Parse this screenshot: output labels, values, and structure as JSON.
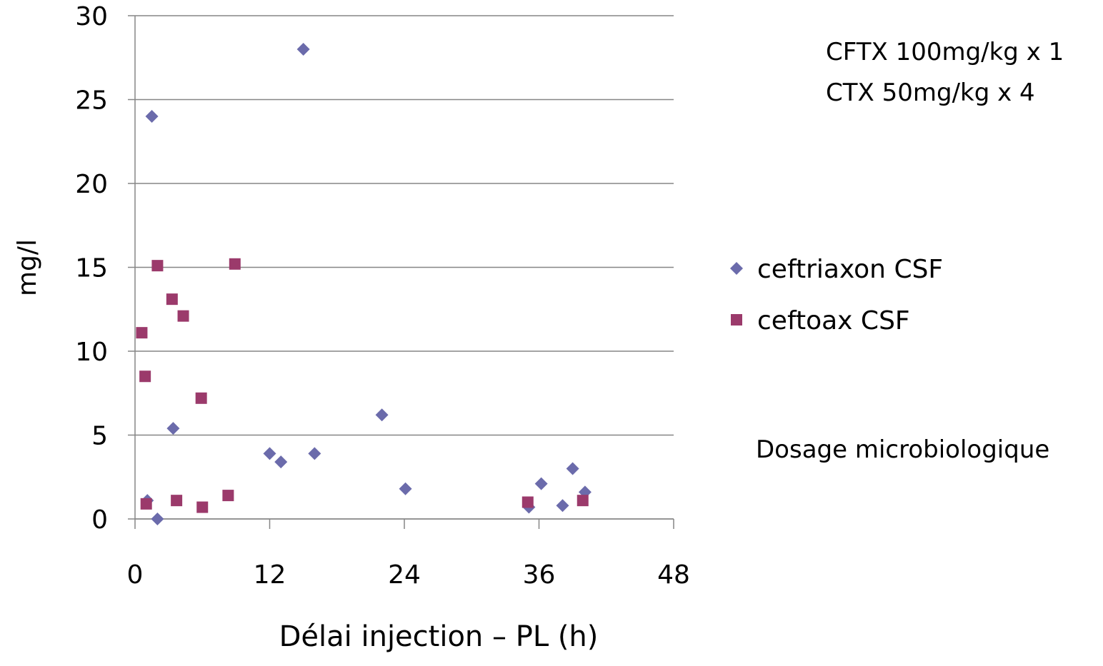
{
  "chart_data": {
    "type": "scatter",
    "x_label": "Délai injection – PL (h)",
    "y_label": "mg/l",
    "annotations": [
      "CFTX 100mg/kg x 1",
      "CTX 50mg/kg x 4",
      "Dosage microbiologique"
    ],
    "xlim": [
      0,
      48
    ],
    "xticks": [
      0,
      12,
      24,
      36,
      48
    ],
    "ylim": [
      0,
      30
    ],
    "yticks": [
      0,
      5,
      10,
      15,
      20,
      25,
      30
    ],
    "grid": true,
    "legend": "right",
    "series": [
      {
        "name": "ceftriaxon CSF",
        "color": "#6b6bab",
        "marker": "diamond",
        "x": [
          1.5,
          15,
          1.1,
          2,
          3.4,
          12,
          13,
          16,
          22,
          24.1,
          35.1,
          36.2,
          38.1,
          39,
          40.1
        ],
        "values": [
          24,
          28,
          1.1,
          0,
          5.4,
          3.9,
          3.4,
          3.9,
          6.2,
          1.8,
          0.7,
          2.1,
          0.8,
          3,
          1.6
        ]
      },
      {
        "name": "ceftoax CSF",
        "color": "#9b3a6b",
        "marker": "square",
        "x": [
          0.6,
          0.9,
          1,
          2,
          3.3,
          4.3,
          3.7,
          5.9,
          6,
          8.3,
          8.9,
          35,
          39.9
        ],
        "values": [
          11.1,
          8.5,
          0.9,
          15.1,
          13.1,
          12.1,
          1.1,
          7.2,
          0.7,
          1.4,
          15.2,
          1,
          1.1
        ]
      }
    ]
  }
}
